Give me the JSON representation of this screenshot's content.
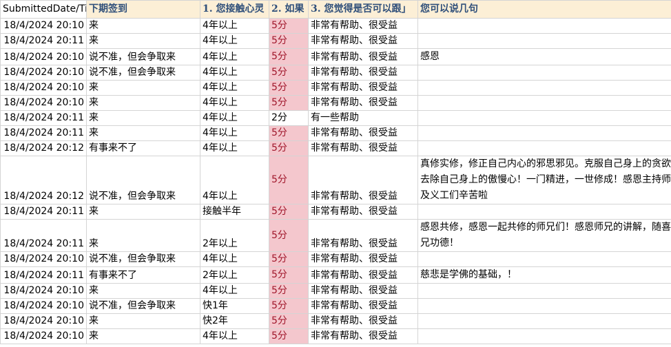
{
  "headers": [
    "SubmittedDate/Ti",
    "下期签到",
    "1. 您接触心灵",
    "2. 如果",
    "3. 您觉得是否可以跟」",
    "您可以说几句"
  ],
  "rows": [
    [
      "18/4/2024 20:10",
      "来",
      "4年以上",
      "5分",
      "非常有帮助、很受益",
      ""
    ],
    [
      "18/4/2024 20:11",
      "来",
      "4年以上",
      "5分",
      "非常有帮助、很受益",
      ""
    ],
    [
      "18/4/2024 20:10",
      "说不准，但会争取来",
      "4年以上",
      "5分",
      "非常有帮助、很受益",
      "感恩"
    ],
    [
      "18/4/2024 20:10",
      "说不准，但会争取来",
      "4年以上",
      "5分",
      "非常有帮助、很受益",
      ""
    ],
    [
      "18/4/2024 20:10",
      "来",
      "4年以上",
      "5分",
      "非常有帮助、很受益",
      ""
    ],
    [
      "18/4/2024 20:10",
      "来",
      "4年以上",
      "5分",
      "非常有帮助、很受益",
      ""
    ],
    [
      "18/4/2024 20:11",
      "来",
      "4年以上",
      "2分",
      "有一些帮助",
      ""
    ],
    [
      "18/4/2024 20:11",
      "来",
      "4年以上",
      "5分",
      "非常有帮助、很受益",
      ""
    ],
    [
      "18/4/2024 20:12",
      "有事来不了",
      "4年以上",
      "5分",
      "非常有帮助、很受益",
      ""
    ],
    [
      "18/4/2024 20:12",
      "说不准，但会争取来",
      "4年以上",
      "5分",
      "非常有帮助、很受益",
      "真修实修，修正自己内心的邪思邪见。克服自己身上的贪欲，去除自己身上的傲慢心！一门精进，一世修成！感恩主持师兄及义工们辛苦啦"
    ],
    [
      "18/4/2024 20:11",
      "来",
      "接触半年",
      "5分",
      "非常有帮助、很受益",
      ""
    ],
    [
      "18/4/2024 20:11",
      "来",
      "2年以上",
      "5分",
      "非常有帮助、很受益",
      "感恩共修，感恩一起共修的师兄们！感恩师兄的讲解，随喜师兄功德！"
    ],
    [
      "18/4/2024 20:10",
      "说不准，但会争取来",
      "4年以上",
      "5分",
      "非常有帮助、很受益",
      ""
    ],
    [
      "18/4/2024 20:11",
      "有事来不了",
      "2年以上",
      "5分",
      "非常有帮助、很受益",
      "慈悲是学佛的基础，！"
    ],
    [
      "18/4/2024 20:10",
      "来",
      "4年以上",
      "5分",
      "非常有帮助、很受益",
      ""
    ],
    [
      "18/4/2024 20:10",
      "说不准，但会争取来",
      "快1年",
      "5分",
      "非常有帮助、很受益",
      ""
    ],
    [
      "18/4/2024 20:10",
      "来",
      "快2年",
      "5分",
      "非常有帮助、很受益",
      ""
    ],
    [
      "18/4/2024 20:10",
      "来",
      "4年以上",
      "5分",
      "非常有帮助、很受益",
      ""
    ]
  ]
}
